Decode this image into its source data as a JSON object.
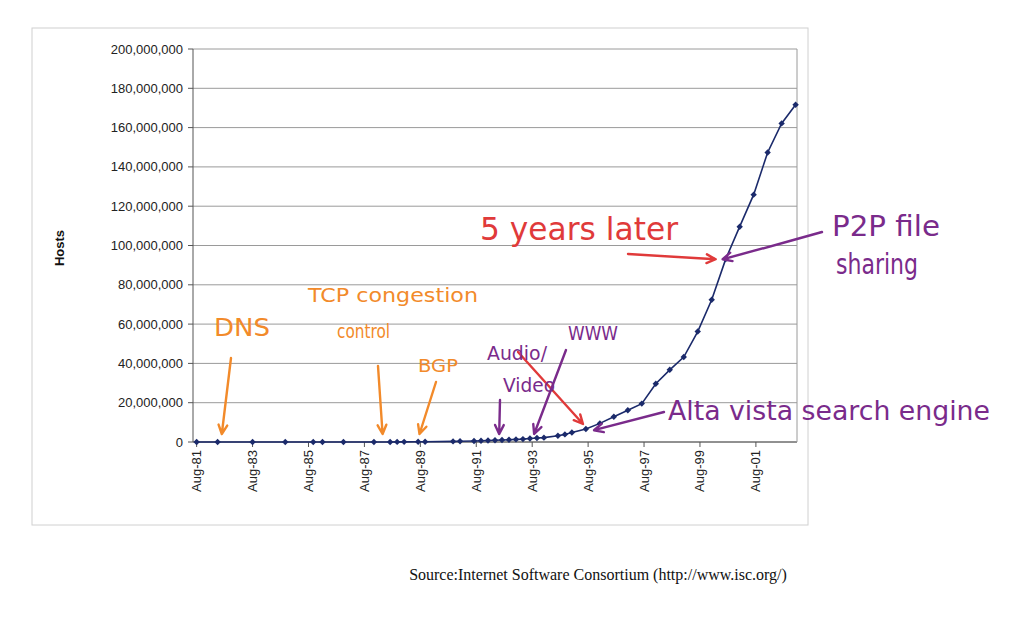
{
  "chart_data": {
    "type": "line",
    "ylabel": "Hosts",
    "source": "Source:Internet Software Consortium (http://www.isc.org/)",
    "x": [
      1981.58,
      1982.33,
      1983.58,
      1984.75,
      1985.75,
      1986.08,
      1986.83,
      1987.92,
      1988.5,
      1988.75,
      1989.0,
      1989.5,
      1989.75,
      1990.75,
      1991.0,
      1991.5,
      1991.75,
      1992.0,
      1992.25,
      1992.5,
      1992.75,
      1993.0,
      1993.25,
      1993.5,
      1993.75,
      1994.0,
      1994.5,
      1994.75,
      1995.0,
      1995.5,
      1996.0,
      1996.5,
      1997.0,
      1997.5,
      1998.0,
      1998.5,
      1999.0,
      1999.5,
      2000.0,
      2000.5,
      2001.0,
      2001.5,
      2002.0,
      2002.5,
      2003.0
    ],
    "values": [
      213,
      235,
      562,
      1024,
      1961,
      2308,
      5089,
      28174,
      33000,
      56000,
      80000,
      130000,
      159000,
      313000,
      376000,
      535000,
      617000,
      727000,
      890000,
      992000,
      1136000,
      1313000,
      1486000,
      1776000,
      2056000,
      2217000,
      3212000,
      3864000,
      4852000,
      6642000,
      9472000,
      12881000,
      16146000,
      19540000,
      29670000,
      36739000,
      43230000,
      56218000,
      72398092,
      93047785,
      109574429,
      125888197,
      147344723,
      162128493,
      171638297
    ],
    "color": "#1b2a6b",
    "marker": "diamond",
    "line_style": "solid",
    "grid": true,
    "xlim": [
      1981.45,
      2003.05
    ],
    "xticks": [
      {
        "value": 1981.58,
        "label": "Aug-81"
      },
      {
        "value": 1983.58,
        "label": "Aug-83"
      },
      {
        "value": 1985.58,
        "label": "Aug-85"
      },
      {
        "value": 1987.58,
        "label": "Aug-87"
      },
      {
        "value": 1989.58,
        "label": "Aug-89"
      },
      {
        "value": 1991.58,
        "label": "Aug-91"
      },
      {
        "value": 1993.58,
        "label": "Aug-93"
      },
      {
        "value": 1995.58,
        "label": "Aug-95"
      },
      {
        "value": 1997.58,
        "label": "Aug-97"
      },
      {
        "value": 1999.58,
        "label": "Aug-99"
      },
      {
        "value": 2001.58,
        "label": "Aug-01"
      }
    ],
    "ylim": [
      0,
      200000000
    ],
    "yticks": [
      0,
      {
        "value": 20000000,
        "label": "20,000,000"
      },
      {
        "value": 40000000,
        "label": "40,000,000"
      },
      {
        "value": 60000000,
        "label": "60,000,000"
      },
      {
        "value": 80000000,
        "label": "80,000,000"
      },
      {
        "value": 100000000,
        "label": "100,000,000"
      },
      {
        "value": 120000000,
        "label": "120,000,000"
      },
      {
        "value": 140000000,
        "label": "140,000,000"
      },
      {
        "value": 160000000,
        "label": "160,000,000"
      },
      {
        "value": 180000000,
        "label": "180,000,000"
      },
      {
        "value": 200000000,
        "label": "200,000,000"
      }
    ],
    "annotations": [
      {
        "text": "DNS",
        "x": 1982.48,
        "y": 0
      },
      {
        "text": "TCP congestion control",
        "x": 1988.23,
        "y": 0
      },
      {
        "text": "BGP",
        "x": 1989.55,
        "y": 0
      },
      {
        "text": "Audio/Video",
        "x": 1992.4,
        "y": 0
      },
      {
        "text": "WWW",
        "x": 1993.65,
        "y": 0
      },
      {
        "text": "Alta vista search engine",
        "x": 1995.72,
        "y": 6000000
      },
      {
        "text": "5 years later",
        "x": 2000.32,
        "y": 93000000
      },
      {
        "text": "P2P file sharing",
        "x": 2000.32,
        "y": 93000000
      }
    ]
  }
}
